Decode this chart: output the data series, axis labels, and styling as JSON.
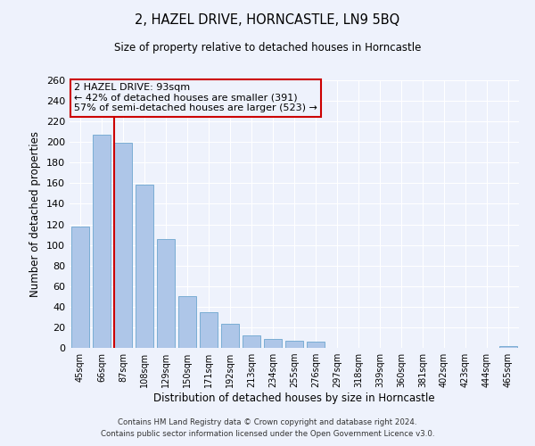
{
  "title": "2, HAZEL DRIVE, HORNCASTLE, LN9 5BQ",
  "subtitle": "Size of property relative to detached houses in Horncastle",
  "xlabel": "Distribution of detached houses by size in Horncastle",
  "ylabel": "Number of detached properties",
  "categories": [
    "45sqm",
    "66sqm",
    "87sqm",
    "108sqm",
    "129sqm",
    "150sqm",
    "171sqm",
    "192sqm",
    "213sqm",
    "234sqm",
    "255sqm",
    "276sqm",
    "297sqm",
    "318sqm",
    "339sqm",
    "360sqm",
    "381sqm",
    "402sqm",
    "423sqm",
    "444sqm",
    "465sqm"
  ],
  "values": [
    118,
    207,
    199,
    159,
    106,
    50,
    35,
    23,
    12,
    9,
    7,
    6,
    0,
    0,
    0,
    0,
    0,
    0,
    0,
    0,
    2
  ],
  "bar_color": "#aec6e8",
  "bar_edge_color": "#7aadd4",
  "vline_x_idx": 2,
  "vline_color": "#cc0000",
  "annotation_title": "2 HAZEL DRIVE: 93sqm",
  "annotation_line1": "← 42% of detached houses are smaller (391)",
  "annotation_line2": "57% of semi-detached houses are larger (523) →",
  "annotation_box_color": "#cc0000",
  "ylim": [
    0,
    260
  ],
  "yticks": [
    0,
    20,
    40,
    60,
    80,
    100,
    120,
    140,
    160,
    180,
    200,
    220,
    240,
    260
  ],
  "footnote1": "Contains HM Land Registry data © Crown copyright and database right 2024.",
  "footnote2": "Contains public sector information licensed under the Open Government Licence v3.0.",
  "bg_color": "#eef2fc",
  "grid_color": "#ffffff"
}
